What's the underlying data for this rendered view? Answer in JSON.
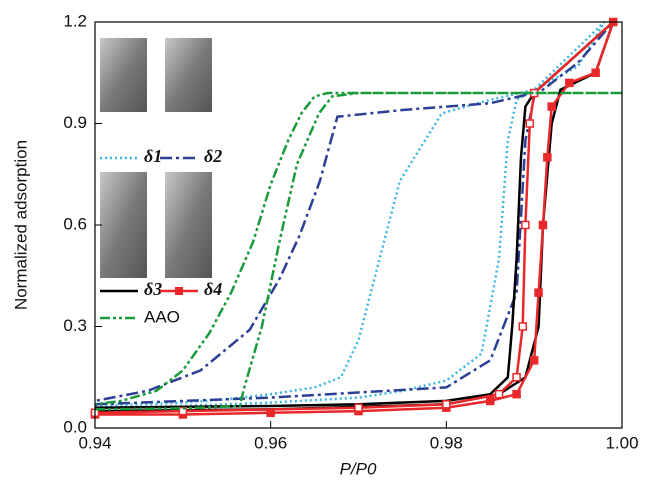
{
  "chart_data": {
    "type": "line",
    "x_label": "P/P0",
    "y_label": "Normalized adsorption",
    "xlim": [
      0.94,
      1.0
    ],
    "ylim": [
      0,
      1.2
    ],
    "xticks": [
      0.94,
      0.96,
      0.98,
      {
        "value": 1,
        "label": "1.00"
      }
    ],
    "yticks": [
      {
        "value": 0,
        "label": "0.0"
      },
      0.3,
      0.6,
      0.9,
      1.2
    ],
    "series": [
      {
        "name": "δ1",
        "color": "#3cb6e0",
        "style": "dotted",
        "x": [
          0.94,
          0.95,
          0.96,
          0.97,
          0.975,
          0.98,
          0.984,
          0.986,
          0.987,
          0.988,
          0.99,
          0.995,
          0.998,
          0.99,
          0.985,
          0.9795,
          0.9747,
          0.9724,
          0.97,
          0.968,
          0.965,
          0.96,
          0.955,
          0.95,
          0.94
        ],
        "values": [
          0.06,
          0.065,
          0.075,
          0.09,
          0.11,
          0.14,
          0.22,
          0.5,
          0.85,
          0.97,
          1.0,
          1.07,
          1.2,
          1.0,
          0.97,
          0.93,
          0.73,
          0.5,
          0.26,
          0.15,
          0.12,
          0.1,
          0.085,
          0.075,
          0.065
        ]
      },
      {
        "name": "δ2",
        "color": "#2b3f95",
        "style": "dashdot",
        "x": [
          0.94,
          0.96,
          0.98,
          0.985,
          0.988,
          0.989,
          0.99,
          0.995,
          0.999,
          0.99,
          0.985,
          0.975,
          0.9676,
          0.9656,
          0.9633,
          0.961,
          0.9576,
          0.952,
          0.946,
          0.94
        ],
        "values": [
          0.07,
          0.09,
          0.12,
          0.2,
          0.4,
          0.85,
          0.98,
          1.08,
          1.2,
          0.99,
          0.96,
          0.94,
          0.92,
          0.73,
          0.57,
          0.44,
          0.29,
          0.17,
          0.11,
          0.08
        ]
      },
      {
        "name": "δ3",
        "color": "#000000",
        "style": "solid",
        "x": [
          0.94,
          0.96,
          0.98,
          0.986,
          0.989,
          0.9905,
          0.991,
          0.992,
          0.993,
          0.997,
          0.999,
          0.99,
          0.989,
          0.9885,
          0.988,
          0.9875,
          0.987,
          0.985,
          0.98,
          0.97,
          0.96,
          0.94
        ],
        "values": [
          0.05,
          0.055,
          0.07,
          0.1,
          0.15,
          0.3,
          0.6,
          0.9,
          1.0,
          1.05,
          1.2,
          0.99,
          0.95,
          0.8,
          0.5,
          0.3,
          0.15,
          0.1,
          0.08,
          0.07,
          0.065,
          0.06
        ]
      },
      {
        "name": "δ4",
        "color": "#e8282a",
        "style": "solid",
        "markers": true,
        "x": [
          0.94,
          0.95,
          0.96,
          0.97,
          0.98,
          0.985,
          0.988,
          0.99,
          0.9905,
          0.991,
          0.9915,
          0.992,
          0.994,
          0.997,
          0.999,
          0.99,
          0.9895,
          0.989,
          0.9887,
          0.988,
          0.986,
          0.98,
          0.97,
          0.95,
          0.94
        ],
        "values": [
          0.04,
          0.04,
          0.045,
          0.05,
          0.06,
          0.08,
          0.1,
          0.2,
          0.4,
          0.6,
          0.8,
          0.95,
          1.02,
          1.05,
          1.2,
          0.99,
          0.9,
          0.6,
          0.3,
          0.15,
          0.1,
          0.07,
          0.06,
          0.05,
          0.045
        ]
      },
      {
        "name": "AAO",
        "color": "#1a9a3a",
        "style": "dashdotdot",
        "x": [
          0.94,
          0.95,
          0.9565,
          0.957,
          0.959,
          0.961,
          0.963,
          0.9655,
          0.967,
          0.97,
          0.98,
          0.99,
          1.0,
          0.9665,
          0.965,
          0.9635,
          0.962,
          0.96,
          0.958,
          0.9555,
          0.953,
          0.95,
          0.947,
          0.943,
          0.94
        ],
        "values": [
          0.055,
          0.058,
          0.065,
          0.12,
          0.3,
          0.55,
          0.78,
          0.93,
          0.98,
          0.99,
          0.99,
          0.99,
          0.99,
          0.99,
          0.98,
          0.93,
          0.85,
          0.72,
          0.55,
          0.4,
          0.28,
          0.17,
          0.11,
          0.08,
          0.07
        ]
      }
    ]
  }
}
